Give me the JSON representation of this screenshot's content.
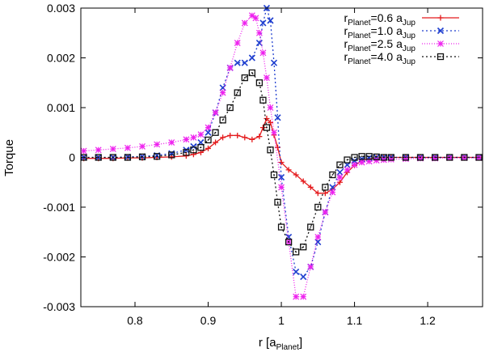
{
  "chart_data": {
    "type": "line",
    "title": "",
    "xlabel": "r [a",
    "xlabel_sub": "Planet",
    "xlabel_suffix": "]",
    "ylabel": "Torque",
    "xlim": [
      0.726,
      1.275
    ],
    "ylim": [
      -0.003,
      0.003
    ],
    "xticks": [
      0.8,
      0.9,
      1.0,
      1.1,
      1.2
    ],
    "xtick_labels": [
      "0.8",
      "0.9",
      "1",
      "1.1",
      "1.2"
    ],
    "yticks": [
      -0.003,
      -0.002,
      -0.001,
      0,
      0.001,
      0.002,
      0.003
    ],
    "ytick_labels": [
      "-0.003",
      "-0.002",
      "-0.001",
      "0",
      "0.001",
      "0.002",
      "0.003"
    ],
    "legend_position": "top-right",
    "series": [
      {
        "name_main": "r",
        "name_sub1": "Planet",
        "name_mid": "=0.6 a",
        "name_sub2": "Jup",
        "color": "#e41a1c",
        "marker": "plus",
        "dash": "",
        "x": [
          0.73,
          0.75,
          0.77,
          0.79,
          0.81,
          0.83,
          0.85,
          0.87,
          0.88,
          0.89,
          0.9,
          0.91,
          0.92,
          0.93,
          0.94,
          0.95,
          0.96,
          0.97,
          0.975,
          0.98,
          0.985,
          0.99,
          0.995,
          1.0,
          1.01,
          1.02,
          1.03,
          1.04,
          1.05,
          1.06,
          1.07,
          1.08,
          1.09,
          1.1,
          1.11,
          1.12,
          1.13,
          1.14,
          1.15,
          1.17,
          1.19,
          1.21,
          1.23,
          1.25,
          1.27
        ],
        "y": [
          -2e-05,
          -2e-05,
          -2e-05,
          -1e-05,
          -1e-05,
          0.0,
          1e-05,
          3e-05,
          6e-05,
          0.0001,
          0.00018,
          0.0003,
          0.0004,
          0.00044,
          0.00044,
          0.0004,
          0.00036,
          0.00042,
          0.0006,
          0.00078,
          0.0007,
          0.00045,
          0.0002,
          -0.0001,
          -0.00025,
          -0.00035,
          -0.00048,
          -0.0006,
          -0.00072,
          -0.00072,
          -0.00064,
          -0.0005,
          -0.0003,
          -0.00016,
          -7e-05,
          -3e-05,
          -1e-05,
          0.0,
          0.0,
          0.0,
          0.0,
          0.0,
          0.0,
          0.0,
          0.0
        ]
      },
      {
        "name_main": "r",
        "name_sub1": "Planet",
        "name_mid": "=1.0 a",
        "name_sub2": "Jup",
        "color": "#1f3fcf",
        "marker": "cross",
        "dash": "2,3",
        "x": [
          0.73,
          0.75,
          0.77,
          0.79,
          0.81,
          0.83,
          0.85,
          0.87,
          0.88,
          0.89,
          0.9,
          0.91,
          0.92,
          0.93,
          0.94,
          0.95,
          0.96,
          0.97,
          0.975,
          0.98,
          0.985,
          0.99,
          0.995,
          1.0,
          1.01,
          1.02,
          1.03,
          1.04,
          1.05,
          1.06,
          1.07,
          1.08,
          1.09,
          1.1,
          1.11,
          1.12,
          1.13,
          1.14,
          1.15,
          1.17,
          1.19,
          1.21,
          1.23,
          1.25,
          1.27
        ],
        "y": [
          0.0,
          0.0,
          0.0,
          1e-05,
          2e-05,
          4e-05,
          8e-05,
          0.00015,
          0.00022,
          0.0003,
          0.0005,
          0.0009,
          0.0014,
          0.0018,
          0.0019,
          0.0019,
          0.002,
          0.0023,
          0.0027,
          0.003,
          0.00275,
          0.0019,
          0.0008,
          -0.0004,
          -0.0016,
          -0.0023,
          -0.0024,
          -0.0022,
          -0.0017,
          -0.0011,
          -0.0006,
          -0.0003,
          -0.00015,
          -7e-05,
          -3e-05,
          -1e-05,
          0.0,
          0.0,
          0.0,
          0.0,
          0.0,
          0.0,
          0.0,
          0.0,
          0.0
        ]
      },
      {
        "name_main": "r",
        "name_sub1": "Planet",
        "name_mid": "=2.5 a",
        "name_sub2": "Jup",
        "color": "#ee22ee",
        "marker": "asterisk",
        "dash": "1,2",
        "x": [
          0.73,
          0.75,
          0.77,
          0.79,
          0.81,
          0.83,
          0.85,
          0.87,
          0.88,
          0.89,
          0.9,
          0.91,
          0.92,
          0.93,
          0.94,
          0.95,
          0.96,
          0.965,
          0.97,
          0.975,
          0.98,
          0.985,
          0.99,
          1.0,
          1.01,
          1.02,
          1.03,
          1.04,
          1.05,
          1.06,
          1.07,
          1.08,
          1.09,
          1.1,
          1.11,
          1.12,
          1.13,
          1.14,
          1.15,
          1.17,
          1.19,
          1.21,
          1.23,
          1.25,
          1.27
        ],
        "y": [
          0.00013,
          0.00015,
          0.00017,
          0.00019,
          0.00022,
          0.00026,
          0.0003,
          0.00036,
          0.0004,
          0.00046,
          0.0006,
          0.0009,
          0.0013,
          0.0018,
          0.0023,
          0.0027,
          0.00285,
          0.0028,
          0.0025,
          0.0021,
          0.0016,
          0.001,
          0.0005,
          -0.0006,
          -0.0017,
          -0.0028,
          -0.0028,
          -0.0022,
          -0.0016,
          -0.0011,
          -0.0007,
          -0.0004,
          -0.00025,
          -0.00015,
          -0.0001,
          -8e-05,
          -6e-05,
          -5e-05,
          -4e-05,
          -3e-05,
          -2e-05,
          -2e-05,
          -1e-05,
          -1e-05,
          -1e-05
        ]
      },
      {
        "name_main": "r",
        "name_sub1": "Planet",
        "name_mid": "=4.0 a",
        "name_sub2": "Jup",
        "color": "#111111",
        "marker": "square",
        "dash": "2,3",
        "x": [
          0.73,
          0.75,
          0.77,
          0.79,
          0.81,
          0.83,
          0.85,
          0.87,
          0.88,
          0.89,
          0.9,
          0.91,
          0.92,
          0.93,
          0.94,
          0.95,
          0.96,
          0.97,
          0.975,
          0.98,
          0.985,
          0.99,
          0.995,
          1.0,
          1.01,
          1.02,
          1.03,
          1.04,
          1.05,
          1.06,
          1.07,
          1.08,
          1.09,
          1.1,
          1.11,
          1.12,
          1.13,
          1.14,
          1.15,
          1.17,
          1.19,
          1.21,
          1.23,
          1.25,
          1.27
        ],
        "y": [
          0.0,
          0.0,
          0.0,
          0.0,
          1e-05,
          2e-05,
          5e-05,
          0.0001,
          0.00015,
          0.0002,
          0.00035,
          0.0005,
          0.00075,
          0.001,
          0.0013,
          0.0016,
          0.0017,
          0.0015,
          0.00115,
          0.0006,
          0.00015,
          -0.00035,
          -0.0009,
          -0.0014,
          -0.0017,
          -0.0019,
          -0.0018,
          -0.0014,
          -0.001,
          -0.0006,
          -0.00035,
          -0.00015,
          -5e-05,
          0.0,
          2e-05,
          2e-05,
          1e-05,
          0.0,
          0.0,
          0.0,
          0.0,
          0.0,
          0.0,
          0.0,
          0.0
        ]
      }
    ]
  }
}
